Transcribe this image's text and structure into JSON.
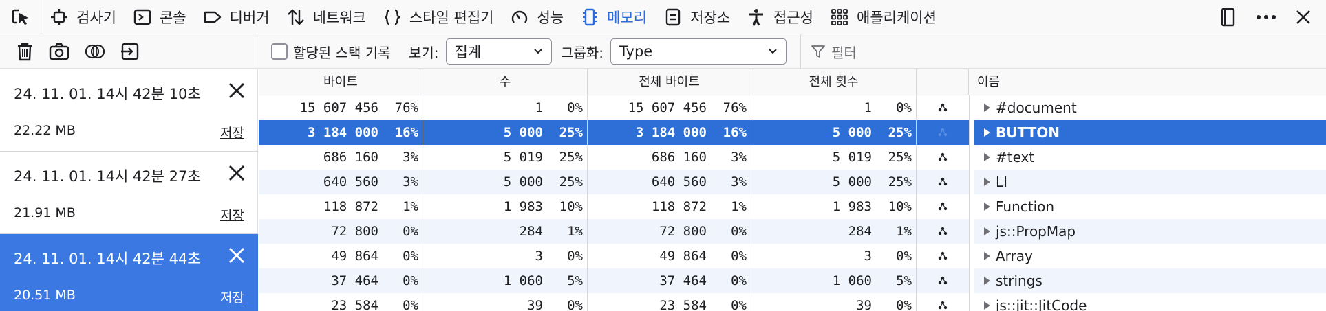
{
  "toolbar": {
    "tabs": [
      {
        "label": "검사기",
        "icon": "inspector-icon"
      },
      {
        "label": "콘솔",
        "icon": "console-icon"
      },
      {
        "label": "디버거",
        "icon": "debugger-icon"
      },
      {
        "label": "네트워크",
        "icon": "network-icon"
      },
      {
        "label": "스타일 편집기",
        "icon": "style-editor-icon"
      },
      {
        "label": "성능",
        "icon": "performance-icon"
      },
      {
        "label": "메모리",
        "icon": "memory-icon",
        "active": true
      },
      {
        "label": "저장소",
        "icon": "storage-icon"
      },
      {
        "label": "접근성",
        "icon": "accessibility-icon"
      },
      {
        "label": "애플리케이션",
        "icon": "application-icon"
      }
    ]
  },
  "options": {
    "record_stacks_label": "할당된 스택 기록",
    "view_label": "보기:",
    "view_value": "집계",
    "group_label": "그룹화:",
    "group_value": "Type",
    "filter_placeholder": "필터"
  },
  "snapshots": [
    {
      "date": "24. 11. 01. 14시 42분 10초",
      "size": "22.22 MB",
      "save": "저장"
    },
    {
      "date": "24. 11. 01. 14시 42분 27초",
      "size": "21.91 MB",
      "save": "저장"
    },
    {
      "date": "24. 11. 01. 14시 42분 44초",
      "size": "20.51 MB",
      "save": "저장",
      "selected": true
    }
  ],
  "table": {
    "headers": {
      "bytes": "바이트",
      "count": "수",
      "total_bytes": "전체 바이트",
      "total_count": "전체 횟수",
      "name": "이름"
    },
    "rows": [
      {
        "bytes": "15 607 456",
        "bytes_pct": "76%",
        "count": "1",
        "count_pct": "0%",
        "total_bytes": "15 607 456",
        "total_bytes_pct": "76%",
        "total_count": "1",
        "total_count_pct": "0%",
        "name": "#document"
      },
      {
        "bytes": "3 184 000",
        "bytes_pct": "16%",
        "count": "5 000",
        "count_pct": "25%",
        "total_bytes": "3 184 000",
        "total_bytes_pct": "16%",
        "total_count": "5 000",
        "total_count_pct": "25%",
        "name": "BUTTON",
        "selected": true
      },
      {
        "bytes": "686 160",
        "bytes_pct": "3%",
        "count": "5 019",
        "count_pct": "25%",
        "total_bytes": "686 160",
        "total_bytes_pct": "3%",
        "total_count": "5 019",
        "total_count_pct": "25%",
        "name": "#text"
      },
      {
        "bytes": "640 560",
        "bytes_pct": "3%",
        "count": "5 000",
        "count_pct": "25%",
        "total_bytes": "640 560",
        "total_bytes_pct": "3%",
        "total_count": "5 000",
        "total_count_pct": "25%",
        "name": "LI"
      },
      {
        "bytes": "118 872",
        "bytes_pct": "1%",
        "count": "1 983",
        "count_pct": "10%",
        "total_bytes": "118 872",
        "total_bytes_pct": "1%",
        "total_count": "1 983",
        "total_count_pct": "10%",
        "name": "Function"
      },
      {
        "bytes": "72 800",
        "bytes_pct": "0%",
        "count": "284",
        "count_pct": "1%",
        "total_bytes": "72 800",
        "total_bytes_pct": "0%",
        "total_count": "284",
        "total_count_pct": "1%",
        "name": "js::PropMap"
      },
      {
        "bytes": "49 864",
        "bytes_pct": "0%",
        "count": "3",
        "count_pct": "0%",
        "total_bytes": "49 864",
        "total_bytes_pct": "0%",
        "total_count": "3",
        "total_count_pct": "0%",
        "name": "Array"
      },
      {
        "bytes": "37 464",
        "bytes_pct": "0%",
        "count": "1 060",
        "count_pct": "5%",
        "total_bytes": "37 464",
        "total_bytes_pct": "0%",
        "total_count": "1 060",
        "total_count_pct": "5%",
        "name": "strings"
      },
      {
        "bytes": "23 584",
        "bytes_pct": "0%",
        "count": "39",
        "count_pct": "0%",
        "total_bytes": "23 584",
        "total_bytes_pct": "0%",
        "total_count": "39",
        "total_count_pct": "0%",
        "name": "js::jit::JitCode"
      }
    ]
  },
  "colors": {
    "accent": "#2c6bd9",
    "selected_row": "#2d6fd6",
    "selected_snapshot": "#3b78e2",
    "alt_row": "#eff4fd"
  }
}
